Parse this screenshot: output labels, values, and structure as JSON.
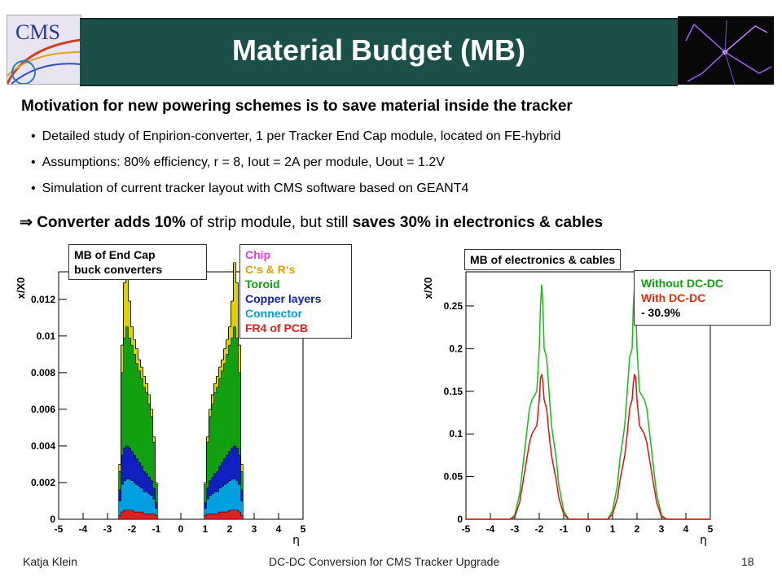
{
  "header": {
    "title": "Material Budget (MB)",
    "logo_text": "CMS"
  },
  "motivation": "Motivation for new powering schemes is to save material inside the tracker",
  "bullets": [
    "Detailed study of Enpirion-converter, 1 per Tracker End Cap module, located on FE-hybrid",
    "Assumptions: 80% efficiency, r = 8, Iout = 2A per module, Uout = 1.2V",
    "Simulation of current tracker layout with CMS software based on GEANT4"
  ],
  "conclusion": {
    "arrow": "⇒",
    "part1": "Converter adds 10%",
    "part2": " of strip module, but still ",
    "part3": "saves 30% in electronics & cables"
  },
  "left_plot": {
    "title_box": [
      "MB of End Cap",
      "buck converters"
    ],
    "legend": [
      {
        "label": "Chip",
        "color": "#e040e0"
      },
      {
        "label": "C‘s & R‘s",
        "color": "#e0a000"
      },
      {
        "label": "Toroid",
        "color": "#10a010"
      },
      {
        "label": "Copper layers",
        "color": "#1020c0"
      },
      {
        "label": "Connector",
        "color": "#00a0e0"
      },
      {
        "label": "FR4 of PCB",
        "color": "#e02020"
      }
    ]
  },
  "right_plot": {
    "title_box": "MB of electronics & cables",
    "legend": [
      {
        "label": "Without DC-DC",
        "color": "#10a010"
      },
      {
        "label": "With DC-DC",
        "color": "#e03010"
      },
      {
        "label": "- 30.9%",
        "color": "#000000"
      }
    ]
  },
  "chart_data": [
    {
      "type": "area",
      "xlabel": "η",
      "ylabel": "x/X0",
      "xlim": [
        -5,
        5
      ],
      "ylim": [
        0,
        0.0135
      ],
      "x_ticks": [
        "-5",
        "-4",
        "-3",
        "-2",
        "-1",
        "0",
        "1",
        "2",
        "3",
        "4",
        "5"
      ],
      "y_ticks": [
        "0",
        "0.002",
        "0.004",
        "0.006",
        "0.008",
        "0.01",
        "0.012"
      ],
      "x": [
        -2.5,
        -2.4,
        -2.3,
        -2.2,
        -2.1,
        -2.0,
        -1.9,
        -1.8,
        -1.7,
        -1.6,
        -1.5,
        -1.4,
        -1.3,
        -1.2,
        -1.1,
        -1.0,
        1.0,
        1.1,
        1.2,
        1.3,
        1.4,
        1.5,
        1.6,
        1.7,
        1.8,
        1.9,
        2.0,
        2.1,
        2.2,
        2.3,
        2.4,
        2.5
      ],
      "series": [
        {
          "name": "FR4 of PCB",
          "color": "#e02020",
          "values": [
            0.0002,
            0.0004,
            0.0005,
            0.0005,
            0.0005,
            0.0005,
            0.0004,
            0.0004,
            0.0004,
            0.0004,
            0.0003,
            0.0003,
            0.0003,
            0.0003,
            0.0003,
            0.0002,
            0.0002,
            0.0003,
            0.0003,
            0.0003,
            0.0003,
            0.0003,
            0.0004,
            0.0004,
            0.0004,
            0.0004,
            0.0005,
            0.0005,
            0.0005,
            0.0005,
            0.0004,
            0.0002
          ]
        },
        {
          "name": "Connector",
          "color": "#00a0e0",
          "values": [
            0.0008,
            0.0015,
            0.0016,
            0.0017,
            0.0017,
            0.0016,
            0.0016,
            0.0015,
            0.0014,
            0.0013,
            0.0012,
            0.0012,
            0.0011,
            0.001,
            0.0008,
            0.0004,
            0.0004,
            0.0008,
            0.001,
            0.0011,
            0.0012,
            0.0012,
            0.0013,
            0.0014,
            0.0015,
            0.0016,
            0.0016,
            0.0017,
            0.0017,
            0.0016,
            0.0015,
            0.0008
          ]
        },
        {
          "name": "Copper layers",
          "color": "#1020c0",
          "values": [
            0.0006,
            0.0016,
            0.0018,
            0.0018,
            0.0017,
            0.0016,
            0.0015,
            0.0014,
            0.0013,
            0.0012,
            0.0011,
            0.001,
            0.0009,
            0.0008,
            0.0006,
            0.0003,
            0.0003,
            0.0006,
            0.0008,
            0.0009,
            0.001,
            0.0011,
            0.0012,
            0.0013,
            0.0014,
            0.0015,
            0.0016,
            0.0017,
            0.0018,
            0.0018,
            0.0016,
            0.0006
          ]
        },
        {
          "name": "Toroid",
          "color": "#10a010",
          "values": [
            0.001,
            0.0045,
            0.006,
            0.0065,
            0.006,
            0.0058,
            0.0055,
            0.0052,
            0.005,
            0.0048,
            0.0046,
            0.0044,
            0.004,
            0.0035,
            0.0025,
            0.001,
            0.001,
            0.0025,
            0.0035,
            0.004,
            0.0044,
            0.0046,
            0.0048,
            0.005,
            0.0052,
            0.0055,
            0.0058,
            0.006,
            0.0065,
            0.006,
            0.0045,
            0.001
          ]
        },
        {
          "name": "C‘s & R‘s",
          "color": "#e0d000",
          "values": [
            0.0004,
            0.0015,
            0.003,
            0.0035,
            0.002,
            0.001,
            0.0008,
            0.0008,
            0.0006,
            0.0006,
            0.0006,
            0.0005,
            0.0005,
            0.0004,
            0.0003,
            0.0001,
            0.0001,
            0.0003,
            0.0004,
            0.0005,
            0.0005,
            0.0006,
            0.0006,
            0.0006,
            0.0008,
            0.0008,
            0.001,
            0.002,
            0.0035,
            0.003,
            0.0015,
            0.0004
          ]
        },
        {
          "name": "Chip",
          "color": "#e040e0",
          "values": [
            0,
            0,
            0,
            0,
            0,
            0,
            0,
            0,
            0,
            0,
            0,
            0,
            0,
            0,
            0,
            0,
            0,
            0,
            0,
            0,
            0,
            0,
            0,
            0,
            0,
            0,
            0,
            0,
            0,
            0,
            0,
            0
          ]
        }
      ]
    },
    {
      "type": "line",
      "xlabel": "η",
      "ylabel": "x/X0",
      "xlim": [
        -5,
        5
      ],
      "ylim": [
        0,
        0.29
      ],
      "x_ticks": [
        "-5",
        "-4",
        "-3",
        "-2",
        "-1",
        "0",
        "1",
        "2",
        "3",
        "4",
        "5"
      ],
      "y_ticks": [
        "0",
        "0.05",
        "0.1",
        "0.15",
        "0.2",
        "0.25"
      ],
      "x": [
        -3.2,
        -3.0,
        -2.8,
        -2.6,
        -2.4,
        -2.3,
        -2.2,
        -2.1,
        -2.0,
        -1.95,
        -1.9,
        -1.85,
        -1.8,
        -1.7,
        -1.6,
        -1.5,
        -1.4,
        -1.3,
        -1.2,
        -1.0,
        -0.8,
        0.8,
        1.0,
        1.2,
        1.3,
        1.4,
        1.5,
        1.6,
        1.7,
        1.8,
        1.85,
        1.9,
        1.95,
        2.0,
        2.1,
        2.2,
        2.3,
        2.4,
        2.6,
        2.8,
        3.0,
        3.2
      ],
      "series": [
        {
          "name": "Without DC-DC",
          "color": "#10c010",
          "values": [
            0.0,
            0.005,
            0.03,
            0.08,
            0.13,
            0.14,
            0.145,
            0.15,
            0.2,
            0.25,
            0.275,
            0.25,
            0.2,
            0.19,
            0.15,
            0.11,
            0.09,
            0.07,
            0.04,
            0.01,
            0.0,
            0.0,
            0.01,
            0.04,
            0.07,
            0.09,
            0.11,
            0.15,
            0.19,
            0.2,
            0.25,
            0.275,
            0.25,
            0.2,
            0.15,
            0.145,
            0.14,
            0.13,
            0.08,
            0.03,
            0.005,
            0.0
          ]
        },
        {
          "name": "With DC-DC",
          "color": "#e01010",
          "values": [
            0.0,
            0.003,
            0.02,
            0.055,
            0.09,
            0.1,
            0.105,
            0.11,
            0.14,
            0.165,
            0.17,
            0.16,
            0.14,
            0.13,
            0.1,
            0.075,
            0.06,
            0.045,
            0.025,
            0.006,
            0.0,
            0.0,
            0.006,
            0.025,
            0.045,
            0.06,
            0.075,
            0.1,
            0.13,
            0.14,
            0.16,
            0.17,
            0.165,
            0.14,
            0.11,
            0.105,
            0.1,
            0.09,
            0.055,
            0.02,
            0.003,
            0.0
          ]
        }
      ]
    }
  ],
  "footer": {
    "author": "Katja Klein",
    "talk_title": "DC-DC Conversion for CMS Tracker Upgrade",
    "page_number": "18"
  }
}
